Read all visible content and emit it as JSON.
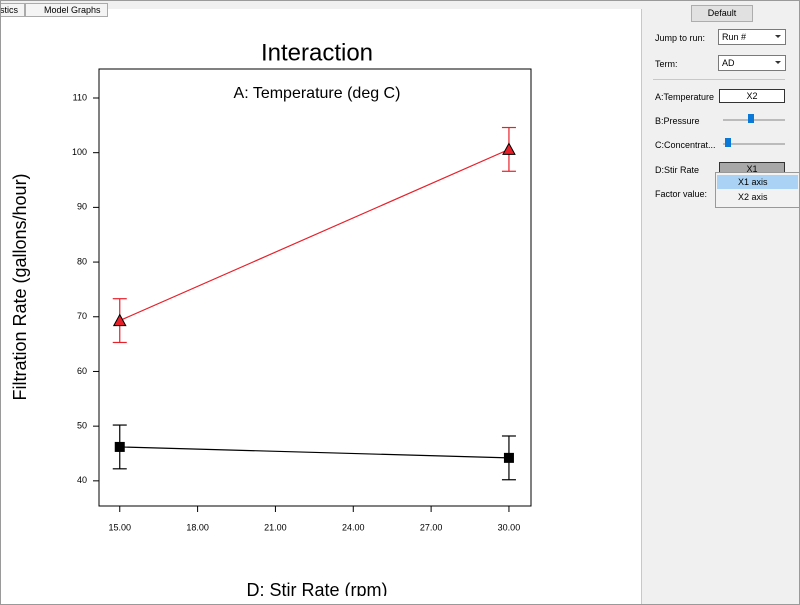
{
  "tabs": [
    "stics",
    "Model Graphs"
  ],
  "panel": {
    "button": "Default",
    "jump_label": "Jump to run:",
    "jump_value": "Run #",
    "term_label": "Term:",
    "term_value": "AD",
    "factors": [
      {
        "name": "A:Temperature",
        "value": "X2"
      },
      {
        "name": "B:Pressure"
      },
      {
        "name": "C:Concentrat..."
      },
      {
        "name": "D:Stir Rate",
        "value": "X1"
      }
    ],
    "factor_value_label": "Factor value:",
    "menu": [
      "X1 axis",
      "X2 axis"
    ]
  },
  "chart_data": {
    "type": "line",
    "title": "Interaction",
    "subtitle": "A: Temperature (deg C)",
    "x_label": "D: Stir Rate (rpm)",
    "y_label": "Filtration Rate (gallons/hour)",
    "x": [
      15,
      30
    ],
    "series": [
      {
        "color": "#e8202a",
        "marker": "triangle",
        "values": [
          69.3,
          100.6
        ],
        "errors": [
          4,
          4
        ]
      },
      {
        "color": "#000000",
        "marker": "square",
        "values": [
          46.2,
          44.2
        ],
        "errors": [
          4,
          4
        ]
      }
    ],
    "xlim": [
      14.2,
      30.85
    ],
    "xticks": [
      {
        "value": 15,
        "label": "15.00"
      },
      {
        "value": 18,
        "label": "18.00"
      },
      {
        "value": 21,
        "label": "21.00"
      },
      {
        "value": 24,
        "label": "24.00"
      },
      {
        "value": 27,
        "label": "27.00"
      },
      {
        "value": 30,
        "label": "30.00"
      }
    ],
    "ylim": [
      35.4,
      115.3
    ],
    "yticks": [
      40,
      50,
      60,
      70,
      80,
      90,
      100,
      110
    ]
  }
}
